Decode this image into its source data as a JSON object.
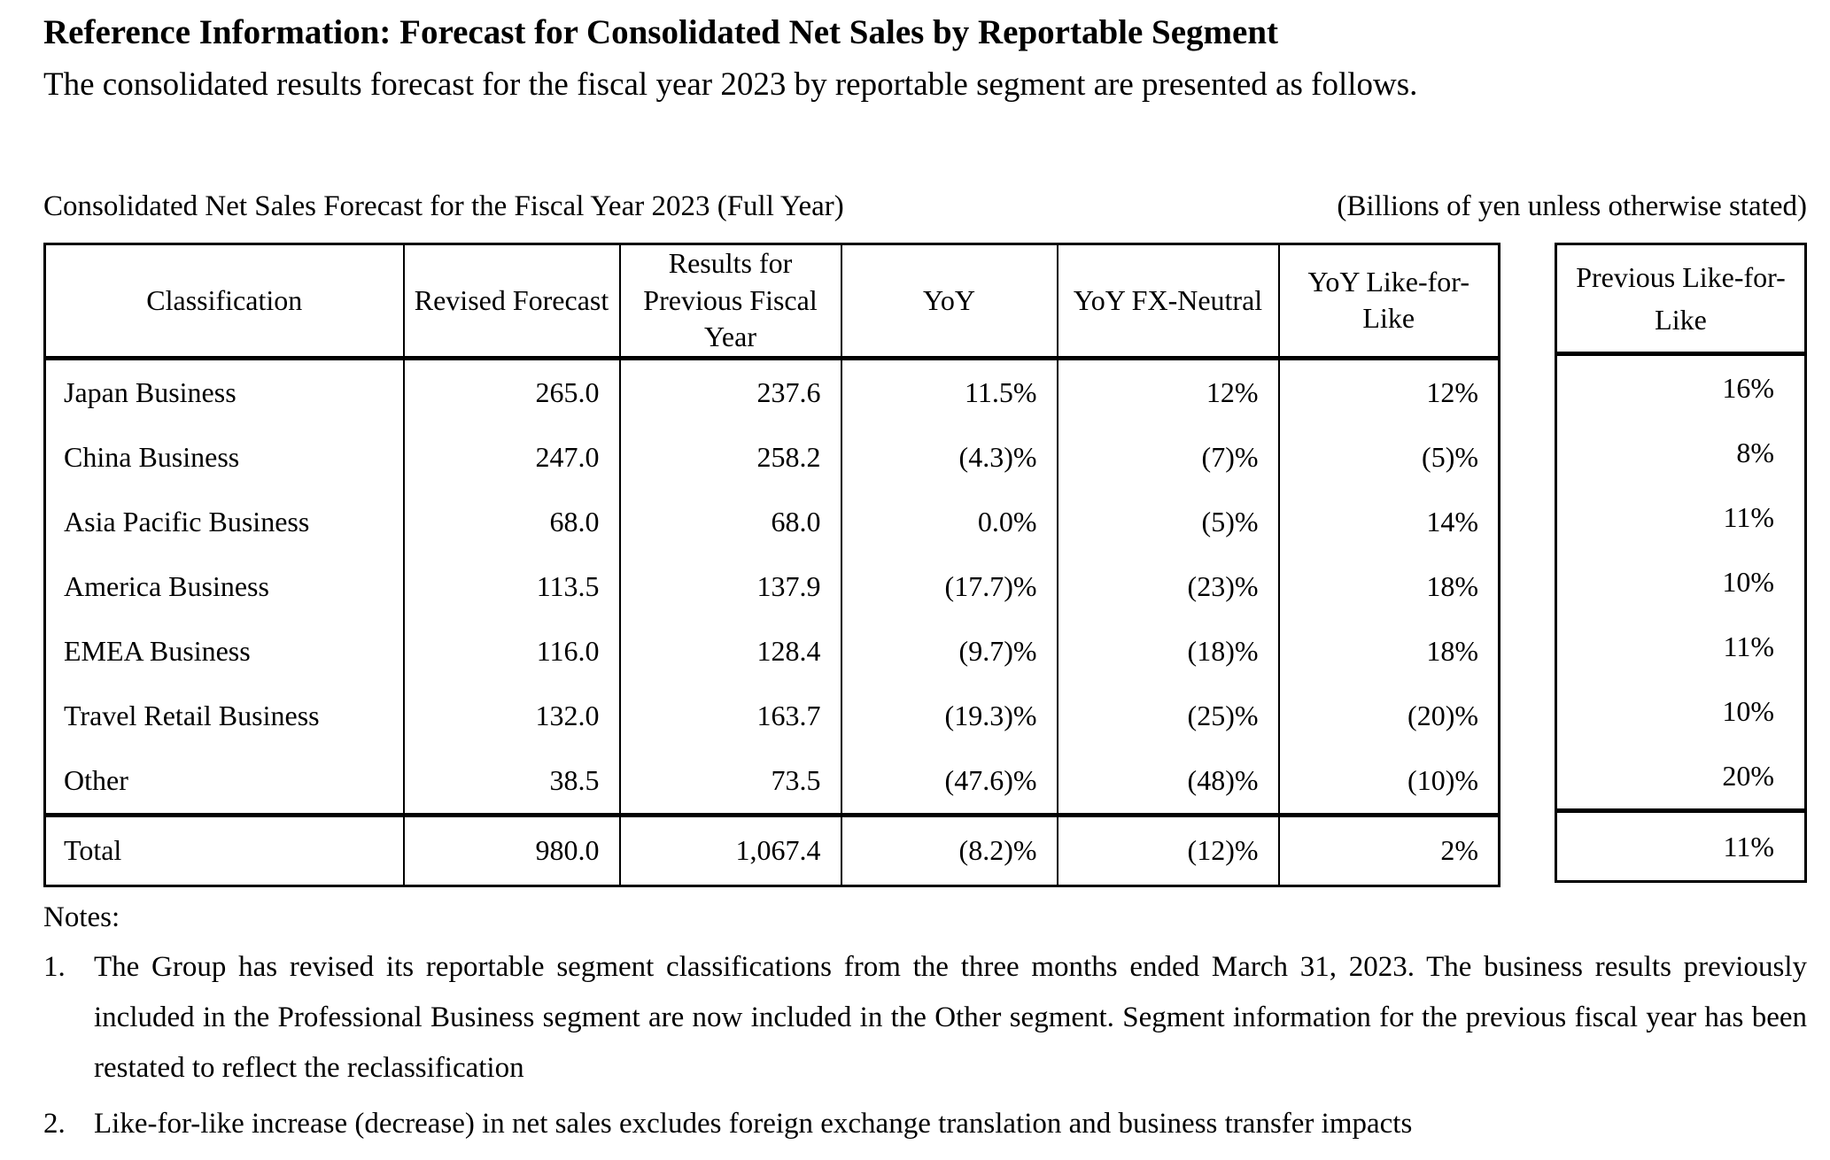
{
  "document": {
    "title": "Reference Information: Forecast for Consolidated Net Sales by Reportable Segment",
    "subtitle": "The consolidated results forecast for the fiscal year 2023 by reportable segment are presented as follows.",
    "caption": "Consolidated Net Sales Forecast for the Fiscal Year 2023 (Full Year)",
    "units": "(Billions of yen unless otherwise stated)"
  },
  "table": {
    "columns": [
      "Classification",
      "Revised Forecast",
      "Results for Previous Fiscal Year",
      "YoY",
      "YoY FX-Neutral",
      "YoY Like-for-Like"
    ],
    "side_column": "Previous Like-for-Like",
    "rows": [
      {
        "name": "Japan Business",
        "values": [
          "265.0",
          "237.6",
          "11.5%",
          "12%",
          "12%"
        ],
        "prev_lfl": "16%"
      },
      {
        "name": "China Business",
        "values": [
          "247.0",
          "258.2",
          "(4.3)%",
          "(7)%",
          "(5)%"
        ],
        "prev_lfl": "8%"
      },
      {
        "name": "Asia Pacific Business",
        "values": [
          "68.0",
          "68.0",
          "0.0%",
          "(5)%",
          "14%"
        ],
        "prev_lfl": "11%"
      },
      {
        "name": "America Business",
        "values": [
          "113.5",
          "137.9",
          "(17.7)%",
          "(23)%",
          "18%"
        ],
        "prev_lfl": "10%"
      },
      {
        "name": "EMEA Business",
        "values": [
          "116.0",
          "128.4",
          "(9.7)%",
          "(18)%",
          "18%"
        ],
        "prev_lfl": "11%"
      },
      {
        "name": "Travel Retail Business",
        "values": [
          "132.0",
          "163.7",
          "(19.3)%",
          "(25)%",
          "(20)%"
        ],
        "prev_lfl": "10%"
      },
      {
        "name": "Other",
        "values": [
          "38.5",
          "73.5",
          "(47.6)%",
          "(48)%",
          "(10)%"
        ],
        "prev_lfl": "20%"
      }
    ],
    "total": {
      "name": "Total",
      "values": [
        "980.0",
        "1,067.4",
        "(8.2)%",
        "(12)%",
        "2%"
      ],
      "prev_lfl": "11%"
    }
  },
  "notes": {
    "label": "Notes:",
    "items": [
      {
        "num": "1.",
        "text": "The Group has revised its reportable segment classifications from the three months ended March 31, 2023. The business results previously included in the Professional Business segment are now included in the Other segment. Segment information for the previous fiscal year has been restated to reflect the reclassification"
      },
      {
        "num": "2.",
        "text": "Like-for-like increase (decrease) in net sales excludes foreign exchange translation and business transfer impacts"
      }
    ]
  }
}
